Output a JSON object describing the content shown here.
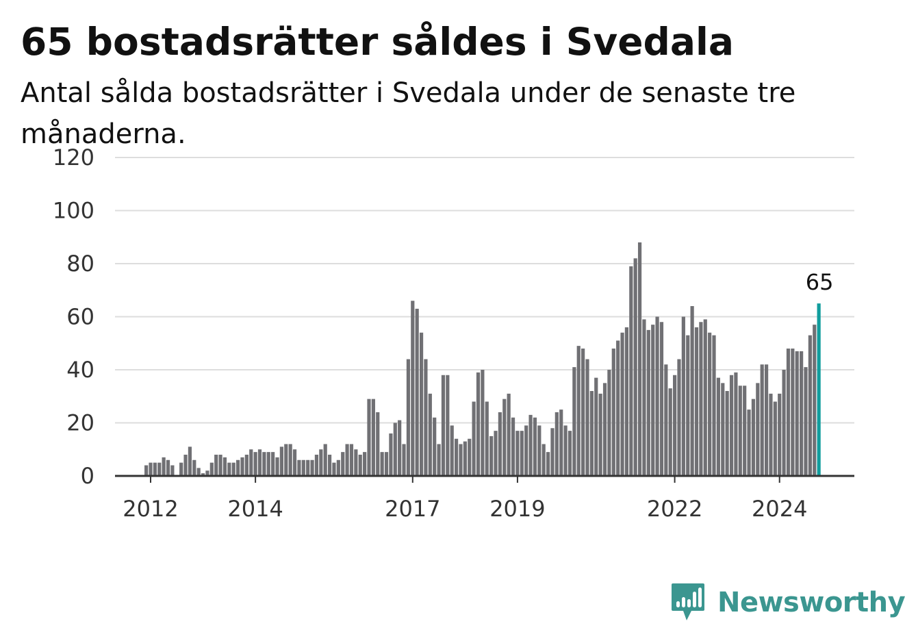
{
  "header": {
    "title": "65 bostadsrätter såldes i Svedala",
    "subtitle": "Antal sålda bostadsrätter i Svedala under de senaste tre månaderna."
  },
  "brand": {
    "name": "Newsworthy",
    "logo_icon": "bar-chart-speech-bubble-icon",
    "color": "#3b9690"
  },
  "colors": {
    "bars": "#707074",
    "highlight": "#119d9d",
    "grid": "#dddddd",
    "axis": "#333333"
  },
  "chart_data": {
    "type": "bar",
    "series": [
      {
        "x_start": "2011-12",
        "values": [
          4,
          5,
          5,
          5,
          7,
          6,
          4,
          0,
          5,
          8,
          11,
          6,
          3,
          1,
          2,
          5,
          8,
          8,
          7,
          5,
          5,
          6,
          7,
          8,
          10,
          9,
          10,
          9,
          9,
          9,
          7,
          11,
          12,
          12,
          10,
          6,
          6,
          6,
          6,
          8,
          10,
          12,
          8,
          5,
          6,
          9,
          12,
          12,
          10,
          8,
          9,
          29,
          29,
          24,
          9,
          9,
          16,
          20,
          21,
          12,
          44,
          66,
          63,
          54,
          44,
          31,
          22,
          12,
          38,
          38,
          19,
          14,
          12,
          13,
          14,
          28,
          39,
          40,
          28,
          15,
          17,
          24,
          29,
          31,
          22,
          17,
          17,
          19,
          23,
          22,
          19,
          12,
          9,
          18,
          24,
          25,
          19,
          17,
          41,
          49,
          48,
          44,
          32,
          37,
          31,
          35,
          40,
          48,
          51,
          54,
          56,
          79,
          82,
          88,
          59,
          55,
          57,
          60,
          58,
          42,
          33,
          38,
          44,
          60,
          53,
          64,
          56,
          58,
          59,
          54,
          53,
          37,
          35,
          32,
          38,
          39,
          34,
          34,
          25,
          29,
          35,
          42,
          42,
          31,
          28,
          31,
          40,
          48,
          48,
          47,
          47,
          41,
          53,
          57,
          65
        ]
      }
    ],
    "x_ticks": [
      "2012",
      "2014",
      "2017",
      "2019",
      "2022",
      "2024"
    ],
    "y_ticks": [
      0,
      20,
      40,
      60,
      80,
      100,
      120
    ],
    "ylim": [
      0,
      120
    ],
    "grid": true,
    "highlight": {
      "value": 65,
      "label": "65"
    }
  }
}
